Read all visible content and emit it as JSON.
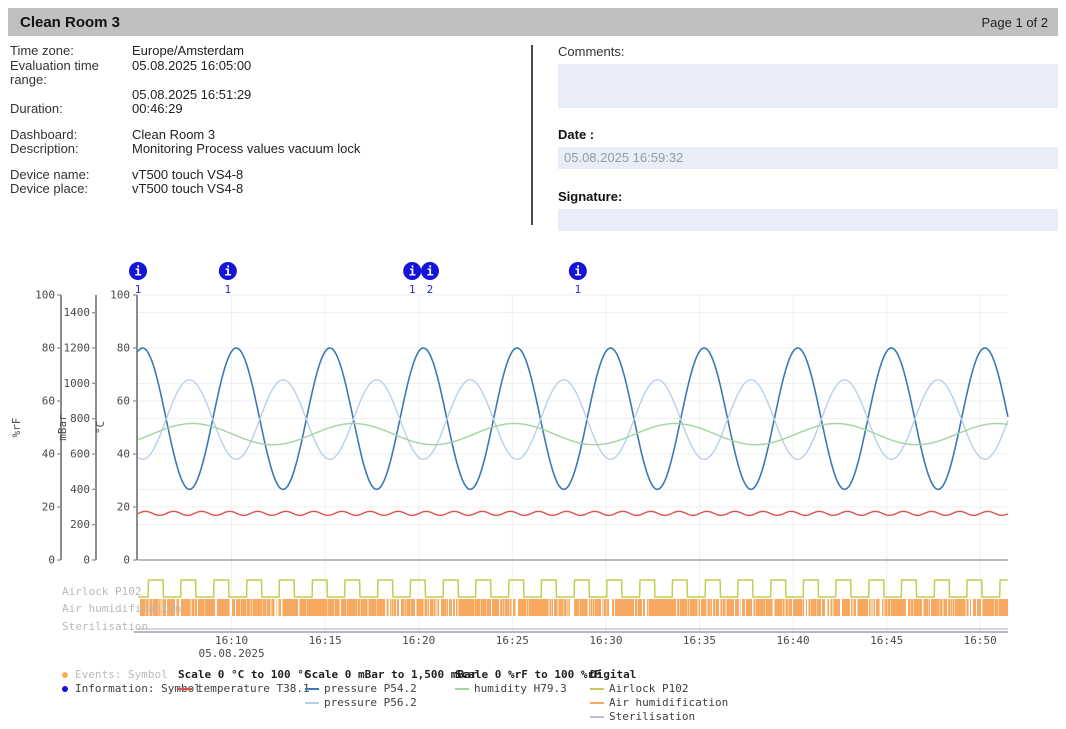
{
  "header": {
    "title": "Clean Room 3",
    "page_label": "Page 1 of 2"
  },
  "metadata": {
    "groups": [
      {
        "rows": [
          {
            "label": "Time zone:",
            "value": "Europe/Amsterdam"
          },
          {
            "label": "Evaluation time range:",
            "value": "05.08.2025 16:05:00"
          },
          {
            "label": "",
            "value": "05.08.2025 16:51:29"
          },
          {
            "label": "Duration:",
            "value": "00:46:29"
          }
        ]
      },
      {
        "rows": [
          {
            "label": "Dashboard:",
            "value": "Clean Room 3"
          },
          {
            "label": "Description:",
            "value": "Monitoring Process values vacuum lock"
          }
        ]
      },
      {
        "rows": [
          {
            "label": "Device name:",
            "value": "vT500 touch VS4-8"
          },
          {
            "label": "Device place:",
            "value": "vT500 touch VS4-8"
          }
        ]
      }
    ]
  },
  "signoff": {
    "comments_label": "Comments:",
    "comments_value": "",
    "date_label": "Date :",
    "date_value": "05.08.2025 16:59:32",
    "signature_label": "Signature:",
    "signature_value": ""
  },
  "colors": {
    "titlebar_bg": "#c0c0c0",
    "field_bg": "#e9edfa",
    "info_icon": "#1414d8",
    "annotation_count_text": "#2626e6",
    "grid_line": "#efeff3",
    "axis_line": "#8c8c8c",
    "axis_text": "#4a4a4a",
    "digital_label_text": "#b9b9b9"
  },
  "chart_data": {
    "type": "line",
    "title": "",
    "x_axis": {
      "date": "05.08.2025",
      "start": "16:05:00",
      "end": "16:51:29",
      "duration_min": 46.4833,
      "ticks": [
        {
          "t_min": 5,
          "label": "16:10"
        },
        {
          "t_min": 10,
          "label": "16:15"
        },
        {
          "t_min": 15,
          "label": "16:20"
        },
        {
          "t_min": 20,
          "label": "16:25"
        },
        {
          "t_min": 25,
          "label": "16:30"
        },
        {
          "t_min": 30,
          "label": "16:35"
        },
        {
          "t_min": 35,
          "label": "16:40"
        },
        {
          "t_min": 40,
          "label": "16:45"
        },
        {
          "t_min": 45,
          "label": "16:50"
        }
      ],
      "date_under_tick": "16:10"
    },
    "y_axes": [
      {
        "unit": "%rF",
        "min": 0,
        "max": 100,
        "ticks": [
          0,
          20,
          40,
          60,
          80,
          100
        ]
      },
      {
        "unit": "mBar",
        "min": 0,
        "max": 1500,
        "ticks": [
          0,
          200,
          400,
          600,
          800,
          1000,
          1200,
          1400
        ]
      },
      {
        "unit": "°C",
        "min": 0,
        "max": 100,
        "ticks": [
          0,
          20,
          40,
          60,
          80,
          100
        ]
      }
    ],
    "grid": true,
    "series": [
      {
        "name": "pressure P54.2",
        "axis_unit": "mBar",
        "color": "#3c79b3",
        "width": 1.6,
        "shape": "sine",
        "center": 800,
        "amplitude": 400,
        "period_min": 5,
        "peak_at_min": 0.25,
        "approx_range": "400 to 1200 mBar"
      },
      {
        "name": "pressure P56.2",
        "axis_unit": "mBar",
        "color": "#b9cfe9",
        "width": 1.4,
        "shape": "sine",
        "center": 795,
        "amplitude": 225,
        "period_min": 5,
        "peak_at_min": 2.75,
        "approx_range": "570 to 1020 mBar"
      },
      {
        "name": "humidity H79.3",
        "axis_unit": "%rF",
        "color": "#a1d49e",
        "width": 1.4,
        "shape": "sine",
        "center": 47.5,
        "amplitude": 4,
        "period_min": 8.6,
        "peak_at_min": 2.9,
        "approx_range": "43.5 to 51.5 %rF"
      },
      {
        "name": "temperature T38.1",
        "axis_unit": "°C",
        "color": "#e0504d",
        "width": 1.4,
        "shape": "sine",
        "center": 17.6,
        "amplitude": 0.75,
        "period_min": 1.5,
        "peak_at_min": 0.4,
        "approx_range": "16.9 to 18.4 °C"
      }
    ],
    "digital_series": [
      {
        "name": "Airlock P102",
        "color": "#c6cc51",
        "pattern": "square",
        "period_min": 1.75,
        "high_from_min": 0.55,
        "high_to_min": 1.35
      },
      {
        "name": "Air humidification",
        "color": "#f7a961",
        "pattern": "dense-random",
        "on_fraction": 0.9,
        "seed": 7
      },
      {
        "name": "Sterilisation",
        "color": "#bcbcd8",
        "pattern": "flat-off"
      }
    ],
    "annotations": [
      {
        "symbol": "i",
        "count_label": "1",
        "t_min": 0
      },
      {
        "symbol": "i",
        "count_label": "1",
        "t_min": 4.8
      },
      {
        "symbol": "i",
        "count_label": "1",
        "t_min": 14.65
      },
      {
        "symbol": "i",
        "count_label": "2",
        "t_min": 15.6
      },
      {
        "symbol": "i",
        "count_label": "1",
        "t_min": 23.5
      }
    ]
  },
  "legend": {
    "columns": [
      {
        "header": "",
        "items": [
          {
            "marker": "dot",
            "color": "#f5b04e",
            "label": "Events: Symbol",
            "muted": true
          },
          {
            "marker": "dot",
            "color": "#1414d8",
            "label": "Information: Symbol",
            "muted": false
          }
        ]
      },
      {
        "header": "Scale 0 °C to 100 °C",
        "items": [
          {
            "marker": "line",
            "color": "#e0504d",
            "label": "temperature T38.1",
            "muted": false
          }
        ]
      },
      {
        "header": "Scale 0 mBar to 1,500 mBar",
        "items": [
          {
            "marker": "line",
            "color": "#3c79b3",
            "label": "pressure P54.2",
            "muted": false
          },
          {
            "marker": "line",
            "color": "#b9cfe9",
            "label": "pressure P56.2",
            "muted": false
          }
        ]
      },
      {
        "header": "Scale 0 %rF to 100 %rF",
        "items": [
          {
            "marker": "line",
            "color": "#a1d49e",
            "label": "humidity H79.3",
            "muted": false
          }
        ]
      },
      {
        "header": "Digital",
        "items": [
          {
            "marker": "line",
            "color": "#c6cc51",
            "label": "Airlock P102",
            "muted": false
          },
          {
            "marker": "line",
            "color": "#f7a961",
            "label": "Air humidification",
            "muted": false
          },
          {
            "marker": "line",
            "color": "#bcbcd8",
            "label": "Sterilisation",
            "muted": false
          }
        ]
      }
    ]
  }
}
